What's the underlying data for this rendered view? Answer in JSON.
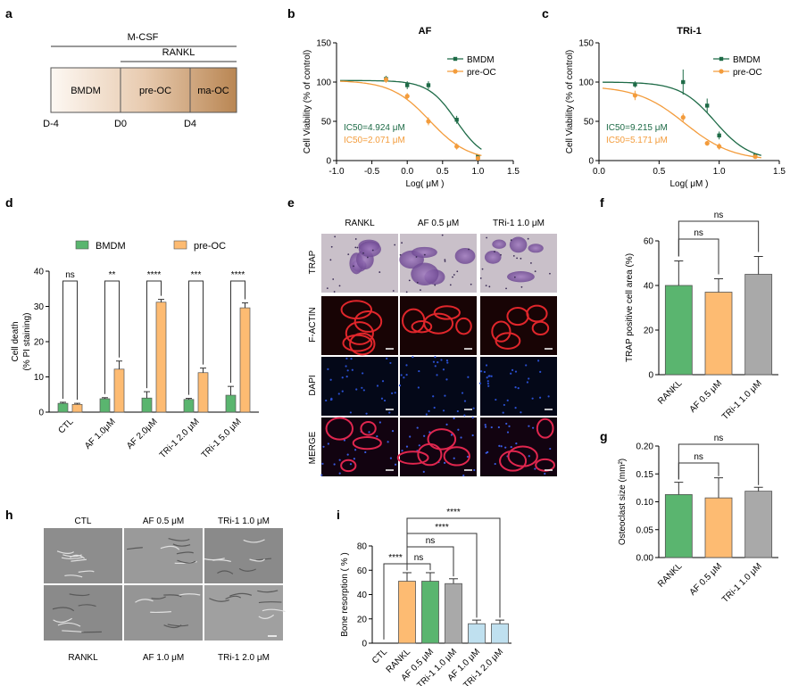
{
  "panel_letters": [
    "a",
    "b",
    "c",
    "d",
    "e",
    "f",
    "g",
    "h",
    "i"
  ],
  "colors": {
    "bmdm_green": "#1e6b47",
    "preoc_orange": "#f39c3c",
    "bar_green": "#5ab56f",
    "bar_orange": "#fdbb72",
    "bar_gray": "#a9a9a9",
    "bar_lightblue": "#bfe0ef",
    "ic50_green": "#1e6b47",
    "ic50_orange": "#f39c3c",
    "timeline_bar": "#c9966a"
  },
  "panel_a": {
    "mcsf_label": "M-CSF",
    "rankl_label": "RANKL",
    "stages": [
      "BMDM",
      "pre-OC",
      "ma-OC"
    ],
    "days": [
      "D-4",
      "D0",
      "D4"
    ]
  },
  "chart_data": [
    {
      "id": "b",
      "type": "line",
      "title": "AF",
      "xlabel": "Log( μM )",
      "ylabel": "Cell Viability (% of control)",
      "xlim": [
        -1.0,
        1.5
      ],
      "ylim": [
        0,
        150
      ],
      "xticks": [
        "-1.0",
        "-0.5",
        "0.0",
        "0.5",
        "1.0",
        "1.5"
      ],
      "yticks": [
        "0",
        "50",
        "100",
        "150"
      ],
      "series": [
        {
          "name": "BMDM",
          "color_key": "bmdm_green",
          "x": [
            -0.3,
            0.0,
            0.3,
            0.7,
            1.0
          ],
          "y": [
            104,
            96,
            96,
            52,
            5
          ],
          "err": [
            4,
            5,
            5,
            5,
            2
          ],
          "fit": {
            "top": 102,
            "bottom": 0,
            "logic50": 0.692,
            "hill": 2.2
          }
        },
        {
          "name": "pre-OC",
          "color_key": "preoc_orange",
          "x": [
            -0.3,
            0.0,
            0.3,
            0.7,
            1.0
          ],
          "y": [
            103,
            82,
            50,
            18,
            3
          ],
          "err": [
            4,
            4,
            5,
            4,
            2
          ],
          "fit": {
            "top": 102,
            "bottom": 0,
            "logic50": 0.316,
            "hill": 1.6
          }
        }
      ],
      "annotations": [
        "IC50=4.924 μM",
        "IC50=2.071 μM"
      ]
    },
    {
      "id": "c",
      "type": "line",
      "title": "TRi-1",
      "xlabel": "Log( μM )",
      "ylabel": "Cell Viability (% of control)",
      "xlim": [
        0.0,
        1.5
      ],
      "ylim": [
        0,
        150
      ],
      "xticks": [
        "0.0",
        "0.5",
        "1.0",
        "1.5"
      ],
      "yticks": [
        "0",
        "50",
        "100",
        "150"
      ],
      "series": [
        {
          "name": "BMDM",
          "color_key": "bmdm_green",
          "x": [
            0.3,
            0.7,
            0.9,
            1.0,
            1.3
          ],
          "y": [
            97,
            100,
            70,
            32,
            6
          ],
          "err": [
            4,
            16,
            9,
            5,
            3
          ],
          "fit": {
            "top": 100,
            "bottom": 0,
            "logic50": 0.964,
            "hill": 3.0
          }
        },
        {
          "name": "pre-OC",
          "color_key": "preoc_orange",
          "x": [
            0.3,
            0.7,
            0.9,
            1.0,
            1.3
          ],
          "y": [
            83,
            55,
            22,
            18,
            5
          ],
          "err": [
            6,
            5,
            3,
            4,
            2
          ],
          "fit": {
            "top": 95,
            "bottom": 0,
            "logic50": 0.714,
            "hill": 2.2
          }
        }
      ],
      "annotations": [
        "IC50=9.215 μM",
        "IC50=5.171 μM"
      ]
    },
    {
      "id": "d",
      "type": "bar",
      "xlabel": "",
      "ylabel": "Cell death (% PI staining)",
      "ylim": [
        0,
        40
      ],
      "yticks": [
        "0",
        "10",
        "20",
        "30",
        "40"
      ],
      "categories": [
        "CTL",
        "AF 1.0μM",
        "AF 2.0μM",
        "TRi-1 2.0 μM",
        "TRi-1 5.0 μM"
      ],
      "series": [
        {
          "name": "BMDM",
          "color_key": "bar_green",
          "values": [
            2.5,
            3.8,
            4.0,
            3.6,
            4.8
          ],
          "err": [
            0.3,
            0.3,
            1.8,
            0.3,
            2.5
          ]
        },
        {
          "name": "pre-OC",
          "color_key": "bar_orange",
          "values": [
            2.2,
            12.2,
            31.2,
            11.2,
            29.6
          ],
          "err": [
            0.3,
            2.3,
            0.8,
            1.3,
            1.4
          ]
        }
      ],
      "significance": [
        "ns",
        "**",
        "****",
        "***",
        "****"
      ]
    },
    {
      "id": "f",
      "type": "bar",
      "ylabel": "TRAP positive cell area (%)",
      "ylim": [
        0,
        60
      ],
      "yticks": [
        "0",
        "20",
        "40",
        "60"
      ],
      "categories": [
        "RANKL",
        "AF 0.5 μM",
        "TRi-1 1.0 μM"
      ],
      "values": [
        40,
        37,
        45
      ],
      "err": [
        11,
        6,
        8
      ],
      "colors": [
        "bar_green",
        "bar_orange",
        "bar_gray"
      ],
      "significance": [
        "ns",
        "ns"
      ]
    },
    {
      "id": "g",
      "type": "bar",
      "ylabel": "Osteoclast size (mm²)",
      "ylim": [
        0,
        0.2
      ],
      "yticks": [
        "0.00",
        "0.05",
        "0.10",
        "0.15",
        "0.20"
      ],
      "categories": [
        "RANKL",
        "AF 0.5 μM",
        "TRi-1 1.0 μM"
      ],
      "values": [
        0.113,
        0.107,
        0.119
      ],
      "err": [
        0.022,
        0.036,
        0.007
      ],
      "colors": [
        "bar_green",
        "bar_orange",
        "bar_gray"
      ],
      "significance": [
        "ns",
        "ns"
      ]
    },
    {
      "id": "i",
      "type": "bar",
      "ylabel": "Bone resorption ( % )",
      "ylim": [
        0,
        80
      ],
      "yticks": [
        "0",
        "20",
        "40",
        "60",
        "80"
      ],
      "categories": [
        "CTL",
        "RANKL",
        "AF 0.5 μM",
        "TRi-1 1.0 μM",
        "AF 1.0 μM",
        "TRi-1 2.0 μM"
      ],
      "values": [
        0,
        51,
        51,
        49,
        16,
        16
      ],
      "err": [
        0,
        7,
        7,
        4,
        3,
        3
      ],
      "colors": [
        "bar_orange",
        "bar_orange",
        "bar_green",
        "bar_gray",
        "bar_lightblue",
        "bar_lightblue"
      ],
      "significance": [
        "****",
        "ns",
        "ns",
        "****",
        "****"
      ]
    }
  ],
  "panel_e": {
    "columns": [
      "RANKL",
      "AF 0.5 μM",
      "TRi-1 1.0 μM"
    ],
    "rows": [
      "TRAP",
      "F-ACTIN",
      "DAPI",
      "MERGE"
    ]
  },
  "panel_h": {
    "top_labels": [
      "CTL",
      "AF 0.5 μM",
      "TRi-1 1.0 μM"
    ],
    "bottom_labels": [
      "RANKL",
      "AF 1.0 μM",
      "TRi-1 2.0 μM"
    ]
  }
}
